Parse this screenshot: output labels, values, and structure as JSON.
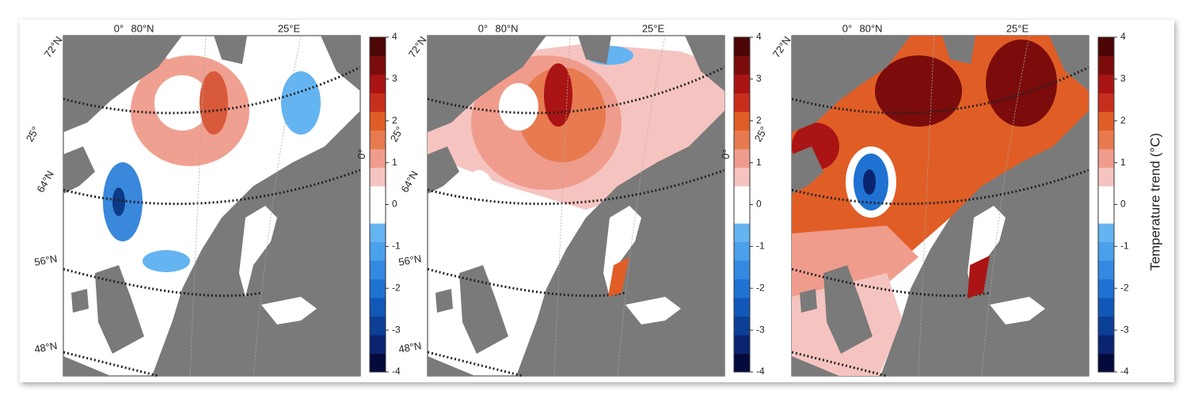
{
  "panels": [
    {
      "labels": [
        "0°",
        "80°N",
        "25°E",
        "72°N",
        "25°",
        "64°N",
        "56°N",
        "48°N",
        "0°"
      ]
    },
    {
      "labels": [
        "0°",
        "80°N",
        "25°E",
        "72°N",
        "25°",
        "64°N",
        "56°N",
        "48°N",
        "0°"
      ]
    },
    {
      "labels": [
        "0°",
        "80°N",
        "25°E",
        "72°N",
        "25°"
      ]
    }
  ],
  "colorbar": {
    "lim": [
      -4,
      4
    ],
    "ticks": [
      4,
      3,
      2,
      1,
      0,
      -1,
      -2,
      -3,
      -4
    ],
    "colors": [
      "#050a3c",
      "#0a2470",
      "#0c3f96",
      "#1258b8",
      "#1f72d2",
      "#3388e0",
      "#4aa0ea",
      "#64b4f2",
      "#ffffff",
      "#ffffff",
      "#f6c4c0",
      "#f09c8c",
      "#e87a50",
      "#e05e26",
      "#c82e1c",
      "#aa1414",
      "#7c0c0c",
      "#4c0606"
    ],
    "label": "Temperature trend (°C)"
  }
}
